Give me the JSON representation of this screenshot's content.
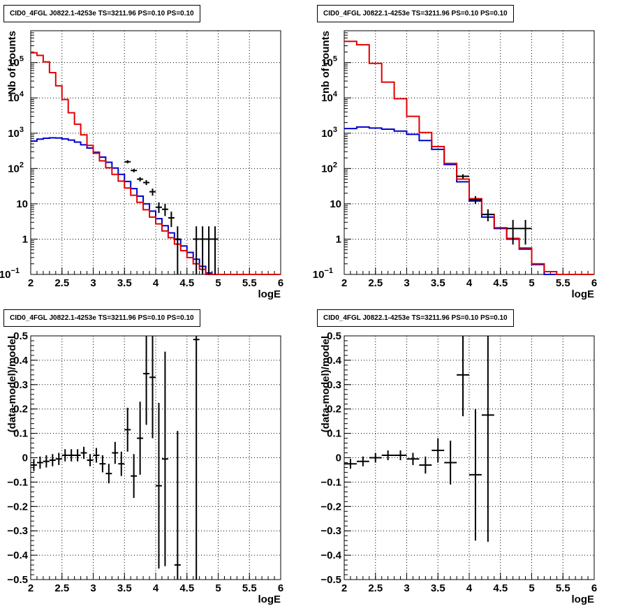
{
  "colors": {
    "data": "#000000",
    "total_model": "#e00000",
    "source_model": "#0000cc"
  },
  "chart_data": [
    {
      "type": "line",
      "panel": "top-left",
      "title": "CID0_4FGL J0822.1-4253e TS=3211.96 PS=0.10 PS=0.10",
      "xlabel": "logE",
      "ylabel": "Nb of counts",
      "xlim": [
        2,
        6
      ],
      "ylim": [
        0.1,
        800000
      ],
      "log_y": true,
      "grid": true,
      "xticks": [
        "2",
        "2.5",
        "3",
        "3.5",
        "4",
        "4.5",
        "5",
        "5.5",
        "6"
      ],
      "yticks": [
        {
          "v": 0.1,
          "base": "10",
          "exp": "−1"
        },
        {
          "v": 1,
          "label": "1"
        },
        {
          "v": 10,
          "label": "10"
        },
        {
          "v": 100,
          "base": "10",
          "exp": "2"
        },
        {
          "v": 1000,
          "base": "10",
          "exp": "3"
        },
        {
          "v": 10000,
          "base": "10",
          "exp": "4"
        },
        {
          "v": 100000,
          "base": "10",
          "exp": "5"
        }
      ],
      "bin_edges": [
        2.0,
        2.1,
        2.2,
        2.3,
        2.4,
        2.5,
        2.6,
        2.7,
        2.8,
        2.9,
        3.0,
        3.1,
        3.2,
        3.3,
        3.4,
        3.5,
        3.6,
        3.7,
        3.8,
        3.9,
        4.0,
        4.1,
        4.2,
        4.3,
        4.4,
        4.5,
        4.6,
        4.7,
        4.8,
        4.9,
        5.0,
        5.1,
        5.2,
        5.3,
        5.4,
        5.5,
        5.6,
        5.7,
        5.8,
        5.9,
        6.0
      ],
      "series": [
        {
          "role": "total_model",
          "values": [
            190000,
            160000,
            105000,
            52000,
            22000,
            9000,
            3800,
            1800,
            900,
            450,
            270,
            165,
            105,
            68,
            44,
            28,
            17.5,
            11,
            6.8,
            4.2,
            2.7,
            1.7,
            1.1,
            0.72,
            0.47,
            0.3,
            0.2,
            0.14,
            0.1,
            0.1,
            0.1,
            0.1,
            0.1,
            0.1,
            0.1,
            0.1,
            0.1,
            0.1,
            0.1,
            0.1
          ]
        },
        {
          "role": "source_model",
          "values": [
            600,
            680,
            720,
            740,
            730,
            690,
            640,
            560,
            470,
            380,
            290,
            210,
            150,
            103,
            68,
            43,
            27,
            16.5,
            10,
            6.2,
            3.8,
            2.4,
            1.5,
            0.98,
            0.64,
            0.42,
            0.27,
            0.17,
            0.11,
            0.1,
            0.1,
            0.1,
            0.1,
            0.1,
            0.1,
            0.1,
            0.1,
            0.1,
            0.1,
            0.1
          ]
        }
      ],
      "data_points": [
        {
          "x": 3.55,
          "y": 155,
          "lo": 140,
          "hi": 172
        },
        {
          "x": 3.65,
          "y": 88,
          "lo": 78,
          "hi": 98
        },
        {
          "x": 3.75,
          "y": 50,
          "lo": 43,
          "hi": 57
        },
        {
          "x": 3.85,
          "y": 40,
          "lo": 34,
          "hi": 47
        },
        {
          "x": 3.95,
          "y": 22,
          "lo": 17,
          "hi": 27
        },
        {
          "x": 4.05,
          "y": 8,
          "lo": 5.5,
          "hi": 11
        },
        {
          "x": 4.15,
          "y": 7,
          "lo": 4.5,
          "hi": 10
        },
        {
          "x": 4.25,
          "y": 4,
          "lo": 2.2,
          "hi": 6
        },
        {
          "x": 4.35,
          "y": 1,
          "lo": 0.1,
          "hi": 2.3
        },
        {
          "x": 4.45,
          "y": 0,
          "lo": 0.1,
          "hi": 0.1
        },
        {
          "x": 4.55,
          "y": 0,
          "lo": 0.1,
          "hi": 0.1
        },
        {
          "x": 4.65,
          "y": 1,
          "lo": 0.1,
          "hi": 2.3
        },
        {
          "x": 4.75,
          "y": 1,
          "lo": 0.1,
          "hi": 2.3
        },
        {
          "x": 4.85,
          "y": 1,
          "lo": 0.1,
          "hi": 2.3
        },
        {
          "x": 4.95,
          "y": 1,
          "lo": 0.1,
          "hi": 2.3
        }
      ],
      "bin_half_width": 0.05
    },
    {
      "type": "line",
      "panel": "top-right",
      "title": "CID0_4FGL J0822.1-4253e TS=3211.96 PS=0.10 PS=0.10",
      "xlabel": "logE",
      "ylabel": "nb of counts",
      "xlim": [
        2,
        6
      ],
      "ylim": [
        0.1,
        800000
      ],
      "log_y": true,
      "grid": true,
      "xticks": [
        "2",
        "2.5",
        "3",
        "3.5",
        "4",
        "4.5",
        "5",
        "5.5",
        "6"
      ],
      "yticks": [
        {
          "v": 0.1,
          "base": "10",
          "exp": "−1"
        },
        {
          "v": 1,
          "label": "1"
        },
        {
          "v": 10,
          "label": "10"
        },
        {
          "v": 100,
          "base": "10",
          "exp": "2"
        },
        {
          "v": 1000,
          "base": "10",
          "exp": "3"
        },
        {
          "v": 10000,
          "base": "10",
          "exp": "4"
        },
        {
          "v": 100000,
          "base": "10",
          "exp": "5"
        }
      ],
      "bin_edges": [
        2.0,
        2.2,
        2.4,
        2.6,
        2.8,
        3.0,
        3.2,
        3.4,
        3.6,
        3.8,
        4.0,
        4.2,
        4.4,
        4.6,
        4.8,
        5.0,
        5.2,
        5.4,
        5.6,
        5.8,
        6.0
      ],
      "series": [
        {
          "role": "total_model",
          "values": [
            400000,
            320000,
            95000,
            28000,
            9500,
            3000,
            1050,
            420,
            140,
            50,
            14,
            5,
            2.1,
            1.05,
            0.56,
            0.2,
            0.12,
            0.1,
            0.1,
            0.1
          ]
        },
        {
          "role": "source_model",
          "values": [
            1350,
            1500,
            1400,
            1300,
            1150,
            930,
            620,
            350,
            130,
            42,
            12,
            4.2,
            2.0,
            1.0,
            0.52,
            0.19,
            0.1,
            0.1,
            0.1,
            0.1
          ]
        }
      ],
      "data_points": [
        {
          "x": 3.9,
          "y": 60,
          "lo": 52,
          "hi": 69
        },
        {
          "x": 4.1,
          "y": 13,
          "lo": 10,
          "hi": 16.5
        },
        {
          "x": 4.3,
          "y": 5,
          "lo": 3.2,
          "hi": 7
        },
        {
          "x": 4.7,
          "y": 2,
          "lo": 0.7,
          "hi": 3.5
        },
        {
          "x": 4.9,
          "y": 2,
          "lo": 0.7,
          "hi": 3.5
        }
      ],
      "bin_half_width": 0.1
    },
    {
      "type": "scatter",
      "panel": "bottom-left",
      "title": "CID0_4FGL J0822.1-4253e TS=3211.96 PS=0.10 PS=0.10",
      "xlabel": "logE",
      "ylabel": "(data-model)/model",
      "xlim": [
        2,
        6
      ],
      "ylim": [
        -0.5,
        0.5
      ],
      "log_y": false,
      "grid": true,
      "xticks": [
        "2",
        "2.5",
        "3",
        "3.5",
        "4",
        "4.5",
        "5",
        "5.5",
        "6"
      ],
      "yticks": [
        {
          "v": -0.5,
          "label": "−0.5"
        },
        {
          "v": -0.4,
          "label": "−0.4"
        },
        {
          "v": -0.3,
          "label": "−0.3"
        },
        {
          "v": -0.2,
          "label": "−0.2"
        },
        {
          "v": -0.1,
          "label": "−0.1"
        },
        {
          "v": 0,
          "label": "0"
        },
        {
          "v": 0.1,
          "label": "0.1"
        },
        {
          "v": 0.2,
          "label": "0.2"
        },
        {
          "v": 0.3,
          "label": "0.3"
        },
        {
          "v": 0.4,
          "label": "0.4"
        },
        {
          "v": 0.5,
          "label": "0.5"
        }
      ],
      "data_points": [
        {
          "x": 2.05,
          "y": -0.03,
          "err": 0.025
        },
        {
          "x": 2.15,
          "y": -0.02,
          "err": 0.025
        },
        {
          "x": 2.25,
          "y": -0.015,
          "err": 0.025
        },
        {
          "x": 2.35,
          "y": -0.01,
          "err": 0.025
        },
        {
          "x": 2.45,
          "y": -0.005,
          "err": 0.025
        },
        {
          "x": 2.55,
          "y": 0.01,
          "err": 0.025
        },
        {
          "x": 2.65,
          "y": 0.01,
          "err": 0.025
        },
        {
          "x": 2.75,
          "y": 0.01,
          "err": 0.025
        },
        {
          "x": 2.85,
          "y": 0.02,
          "err": 0.025
        },
        {
          "x": 2.95,
          "y": -0.01,
          "err": 0.025
        },
        {
          "x": 3.05,
          "y": 0.01,
          "err": 0.03
        },
        {
          "x": 3.15,
          "y": -0.025,
          "err": 0.035
        },
        {
          "x": 3.25,
          "y": -0.065,
          "err": 0.04
        },
        {
          "x": 3.35,
          "y": 0.02,
          "err": 0.045
        },
        {
          "x": 3.45,
          "y": -0.025,
          "err": 0.05
        },
        {
          "x": 3.55,
          "y": 0.115,
          "err": 0.09
        },
        {
          "x": 3.65,
          "y": -0.075,
          "err": 0.09
        },
        {
          "x": 3.75,
          "y": 0.08,
          "err": 0.15
        },
        {
          "x": 3.85,
          "y": 0.345,
          "err": 0.21
        },
        {
          "x": 3.95,
          "y": 0.33,
          "err": 0.25
        },
        {
          "x": 4.05,
          "y": -0.115,
          "err": 0.34
        },
        {
          "x": 4.15,
          "y": -0.005,
          "err": 0.44
        },
        {
          "x": 4.35,
          "y": -0.44,
          "err": 0.55
        },
        {
          "x": 4.65,
          "y": 0.485,
          "err": 1.5
        }
      ],
      "bin_half_width": 0.05
    },
    {
      "type": "scatter",
      "panel": "bottom-right",
      "title": "CID0_4FGL J0822.1-4253e TS=3211.96 PS=0.10 PS=0.10",
      "xlabel": "logE",
      "ylabel": "(data-model)/model",
      "xlim": [
        2,
        6
      ],
      "ylim": [
        -0.5,
        0.5
      ],
      "log_y": false,
      "grid": true,
      "xticks": [
        "2",
        "2.5",
        "3",
        "3.5",
        "4",
        "4.5",
        "5",
        "5.5",
        "6"
      ],
      "yticks": [
        {
          "v": -0.5,
          "label": "−0.5"
        },
        {
          "v": -0.4,
          "label": "−0.4"
        },
        {
          "v": -0.3,
          "label": "−0.3"
        },
        {
          "v": -0.2,
          "label": "−0.2"
        },
        {
          "v": -0.1,
          "label": "−0.1"
        },
        {
          "v": 0,
          "label": "0"
        },
        {
          "v": 0.1,
          "label": "0.1"
        },
        {
          "v": 0.2,
          "label": "0.2"
        },
        {
          "v": 0.3,
          "label": "0.3"
        },
        {
          "v": 0.4,
          "label": "0.4"
        },
        {
          "v": 0.5,
          "label": "0.5"
        }
      ],
      "data_points": [
        {
          "x": 2.1,
          "y": -0.025,
          "err": 0.02
        },
        {
          "x": 2.3,
          "y": -0.015,
          "err": 0.02
        },
        {
          "x": 2.5,
          "y": 0.0,
          "err": 0.02
        },
        {
          "x": 2.7,
          "y": 0.01,
          "err": 0.02
        },
        {
          "x": 2.9,
          "y": 0.01,
          "err": 0.02
        },
        {
          "x": 3.1,
          "y": -0.005,
          "err": 0.025
        },
        {
          "x": 3.3,
          "y": -0.03,
          "err": 0.035
        },
        {
          "x": 3.5,
          "y": 0.03,
          "err": 0.05
        },
        {
          "x": 3.7,
          "y": -0.02,
          "err": 0.09
        },
        {
          "x": 3.9,
          "y": 0.34,
          "err": 0.17
        },
        {
          "x": 4.1,
          "y": -0.07,
          "err": 0.27
        },
        {
          "x": 4.3,
          "y": 0.175,
          "err": 0.52
        }
      ],
      "bin_half_width": 0.1
    }
  ]
}
